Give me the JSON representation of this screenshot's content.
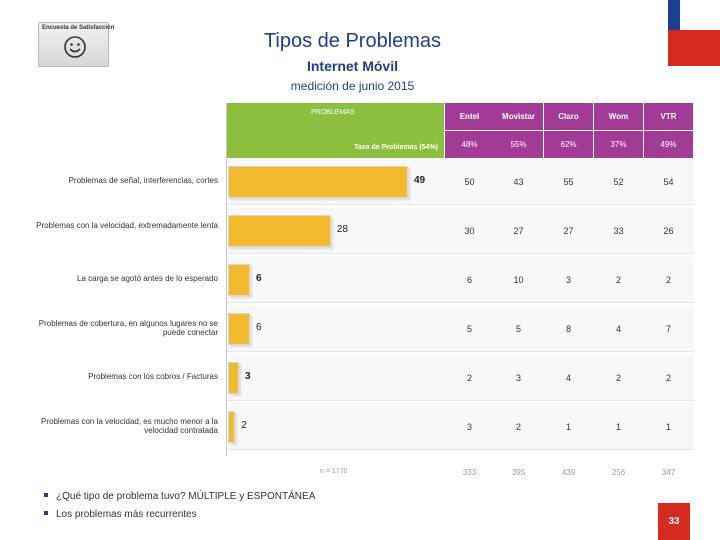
{
  "logo": {
    "text": "Encuesta de Satisfacción"
  },
  "header": {
    "title": "Tipos de Problemas",
    "subtitle": "Internet Móvil",
    "period": "medición de junio 2015"
  },
  "colors": {
    "green": "#8cbe3f",
    "purple": "#a23b96",
    "bar": "#f0b92e",
    "accent": "#1c3f94",
    "red": "#d52b1e"
  },
  "chart_data": {
    "type": "table",
    "title": "Tipos de Problemas",
    "problems_label": "PROBLEMAS",
    "tasa_label": "Tasa de Problemas (54%)",
    "n_total_label": "n = 1770",
    "operators": [
      {
        "name": "Entel",
        "rate": "48%",
        "n": "333"
      },
      {
        "name": "Movistar",
        "rate": "55%",
        "n": "395"
      },
      {
        "name": "Claro",
        "rate": "62%",
        "n": "439"
      },
      {
        "name": "Wom",
        "rate": "37%",
        "n": "256"
      },
      {
        "name": "VTR",
        "rate": "49%",
        "n": "347"
      }
    ],
    "rows": [
      {
        "label": "Problemas de señal, interferencias, cortes",
        "total": 49,
        "values": [
          "50",
          "43",
          "55",
          "52",
          "54"
        ]
      },
      {
        "label": "Problemas con la velocidad, extremadamente lenta",
        "total": 28,
        "values": [
          "30",
          "27",
          "27",
          "33",
          "26"
        ]
      },
      {
        "label": "La carga se agotó antes de lo esperado",
        "total": 6,
        "values": [
          "6",
          "10",
          "3",
          "2",
          "2"
        ]
      },
      {
        "label": "Problemas de cobertura, en algunos lugares no se puede conectar",
        "total": 6,
        "values": [
          "5",
          "5",
          "8",
          "4",
          "7"
        ]
      },
      {
        "label": "Problemas con los cobros / Facturas",
        "total": 3,
        "values": [
          "2",
          "3",
          "4",
          "2",
          "2"
        ]
      },
      {
        "label": "Problemas con la velocidad, es mucho menor a la velocidad contratada",
        "total": 2,
        "values": [
          "3",
          "2",
          "1",
          "1",
          "1"
        ]
      }
    ],
    "bar_max": 49
  },
  "footer": {
    "bullet1": "¿Qué tipo de problema tuvo? MÚLTIPLE y  ESPONTÁNEA",
    "bullet2": "Los problemas más recurrentes",
    "page": "33"
  }
}
